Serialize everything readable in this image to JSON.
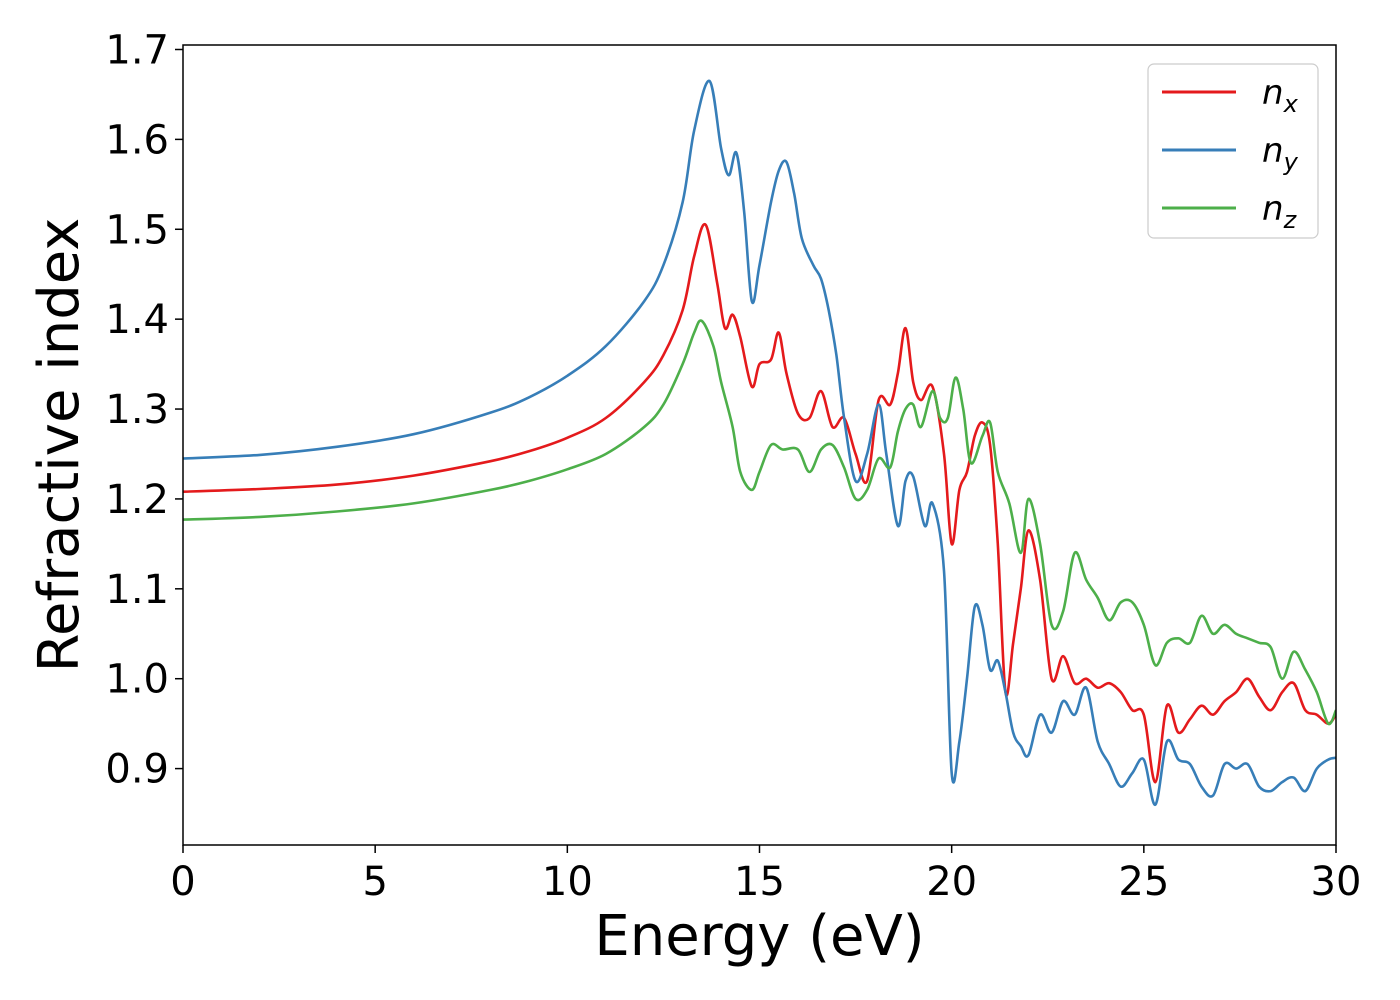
{
  "chart_data": {
    "type": "line",
    "title": "",
    "xlabel": "Energy (eV)",
    "ylabel": "Refractive index",
    "xlim": [
      0,
      30
    ],
    "ylim": [
      0.815,
      1.705
    ],
    "xticks": [
      0,
      5,
      10,
      15,
      20,
      25,
      30
    ],
    "xtick_labels": [
      "0",
      "5",
      "10",
      "15",
      "20",
      "25",
      "30"
    ],
    "yticks": [
      0.9,
      1.0,
      1.1,
      1.2,
      1.3,
      1.4,
      1.5,
      1.6,
      1.7
    ],
    "ytick_labels": [
      "0.9",
      "1.0",
      "1.1",
      "1.2",
      "1.3",
      "1.4",
      "1.5",
      "1.6",
      "1.7"
    ],
    "grid": false,
    "legend_position": "top-right",
    "series": [
      {
        "name": "n",
        "subscript": "x",
        "color": "#e41a1c",
        "x": [
          0,
          2,
          4,
          6,
          8,
          9,
          10,
          11,
          12,
          12.5,
          13,
          13.3,
          13.6,
          13.9,
          14.1,
          14.3,
          14.5,
          14.8,
          15.0,
          15.3,
          15.5,
          15.7,
          16.0,
          16.3,
          16.6,
          16.9,
          17.2,
          17.5,
          17.8,
          18.1,
          18.4,
          18.6,
          18.8,
          19.0,
          19.2,
          19.5,
          19.8,
          20.0,
          20.2,
          20.4,
          20.6,
          20.8,
          21.0,
          21.2,
          21.4,
          21.6,
          21.8,
          22.0,
          22.3,
          22.6,
          22.9,
          23.2,
          23.5,
          23.8,
          24.1,
          24.4,
          24.7,
          25.0,
          25.3,
          25.6,
          25.9,
          26.2,
          26.5,
          26.8,
          27.1,
          27.4,
          27.7,
          28.0,
          28.3,
          28.6,
          28.9,
          29.2,
          29.5,
          29.8,
          30
        ],
        "y": [
          1.208,
          1.211,
          1.216,
          1.226,
          1.242,
          1.253,
          1.268,
          1.29,
          1.33,
          1.36,
          1.41,
          1.47,
          1.505,
          1.44,
          1.39,
          1.405,
          1.38,
          1.325,
          1.35,
          1.355,
          1.385,
          1.34,
          1.295,
          1.29,
          1.32,
          1.28,
          1.29,
          1.25,
          1.22,
          1.31,
          1.305,
          1.34,
          1.39,
          1.33,
          1.31,
          1.325,
          1.25,
          1.15,
          1.21,
          1.23,
          1.27,
          1.285,
          1.26,
          1.15,
          0.985,
          1.04,
          1.1,
          1.165,
          1.11,
          1.0,
          1.025,
          0.995,
          1.0,
          0.99,
          0.995,
          0.985,
          0.965,
          0.96,
          0.885,
          0.97,
          0.94,
          0.955,
          0.97,
          0.96,
          0.975,
          0.985,
          1.0,
          0.98,
          0.965,
          0.985,
          0.995,
          0.965,
          0.96,
          0.95,
          0.96
        ]
      },
      {
        "name": "n",
        "subscript": "y",
        "color": "#377eb8",
        "x": [
          0,
          2,
          4,
          6,
          8,
          9,
          10,
          11,
          12,
          12.5,
          13,
          13.3,
          13.7,
          14.0,
          14.2,
          14.4,
          14.6,
          14.8,
          15.0,
          15.3,
          15.5,
          15.7,
          15.9,
          16.1,
          16.4,
          16.6,
          16.8,
          17.0,
          17.2,
          17.5,
          17.8,
          18.1,
          18.3,
          18.6,
          18.8,
          19.0,
          19.3,
          19.5,
          19.8,
          20.0,
          20.2,
          20.4,
          20.6,
          20.8,
          21.0,
          21.2,
          21.4,
          21.6,
          21.8,
          22.0,
          22.3,
          22.6,
          22.9,
          23.2,
          23.5,
          23.8,
          24.1,
          24.4,
          24.7,
          25.0,
          25.3,
          25.6,
          25.9,
          26.2,
          26.5,
          26.8,
          27.1,
          27.4,
          27.7,
          28.0,
          28.3,
          28.6,
          28.9,
          29.2,
          29.5,
          29.8,
          30
        ],
        "y": [
          1.245,
          1.249,
          1.258,
          1.272,
          1.296,
          1.313,
          1.337,
          1.37,
          1.42,
          1.46,
          1.53,
          1.61,
          1.665,
          1.59,
          1.56,
          1.585,
          1.52,
          1.42,
          1.46,
          1.53,
          1.565,
          1.575,
          1.54,
          1.49,
          1.46,
          1.445,
          1.41,
          1.36,
          1.29,
          1.22,
          1.25,
          1.305,
          1.25,
          1.17,
          1.22,
          1.225,
          1.17,
          1.195,
          1.12,
          0.895,
          0.93,
          1.0,
          1.08,
          1.06,
          1.01,
          1.02,
          0.985,
          0.94,
          0.925,
          0.915,
          0.96,
          0.94,
          0.975,
          0.96,
          0.99,
          0.93,
          0.905,
          0.88,
          0.895,
          0.91,
          0.86,
          0.93,
          0.91,
          0.905,
          0.88,
          0.87,
          0.905,
          0.9,
          0.905,
          0.88,
          0.875,
          0.885,
          0.89,
          0.875,
          0.9,
          0.91,
          0.912
        ]
      },
      {
        "name": "n",
        "subscript": "z",
        "color": "#4daf4a",
        "x": [
          0,
          2,
          4,
          6,
          8,
          9,
          10,
          11,
          12,
          12.5,
          13,
          13.3,
          13.5,
          13.8,
          14.0,
          14.3,
          14.5,
          14.8,
          15.0,
          15.3,
          15.6,
          16.0,
          16.3,
          16.6,
          16.9,
          17.2,
          17.5,
          17.8,
          18.1,
          18.4,
          18.6,
          18.8,
          19.0,
          19.2,
          19.5,
          19.7,
          19.9,
          20.1,
          20.3,
          20.5,
          20.8,
          21.0,
          21.2,
          21.5,
          21.8,
          22.0,
          22.3,
          22.6,
          22.9,
          23.2,
          23.5,
          23.8,
          24.1,
          24.4,
          24.7,
          25.0,
          25.3,
          25.6,
          25.9,
          26.2,
          26.5,
          26.8,
          27.1,
          27.4,
          27.7,
          28.0,
          28.3,
          28.6,
          28.9,
          29.2,
          29.5,
          29.8,
          30
        ],
        "y": [
          1.177,
          1.18,
          1.186,
          1.195,
          1.21,
          1.22,
          1.233,
          1.25,
          1.28,
          1.305,
          1.35,
          1.385,
          1.398,
          1.37,
          1.33,
          1.28,
          1.23,
          1.21,
          1.23,
          1.26,
          1.255,
          1.255,
          1.23,
          1.255,
          1.26,
          1.235,
          1.2,
          1.21,
          1.245,
          1.235,
          1.275,
          1.3,
          1.305,
          1.28,
          1.32,
          1.29,
          1.29,
          1.335,
          1.3,
          1.24,
          1.27,
          1.285,
          1.23,
          1.195,
          1.14,
          1.2,
          1.15,
          1.06,
          1.075,
          1.14,
          1.11,
          1.09,
          1.065,
          1.085,
          1.085,
          1.06,
          1.015,
          1.04,
          1.045,
          1.04,
          1.07,
          1.05,
          1.06,
          1.05,
          1.045,
          1.04,
          1.035,
          1.0,
          1.03,
          1.01,
          0.985,
          0.95,
          0.965
        ]
      }
    ]
  }
}
